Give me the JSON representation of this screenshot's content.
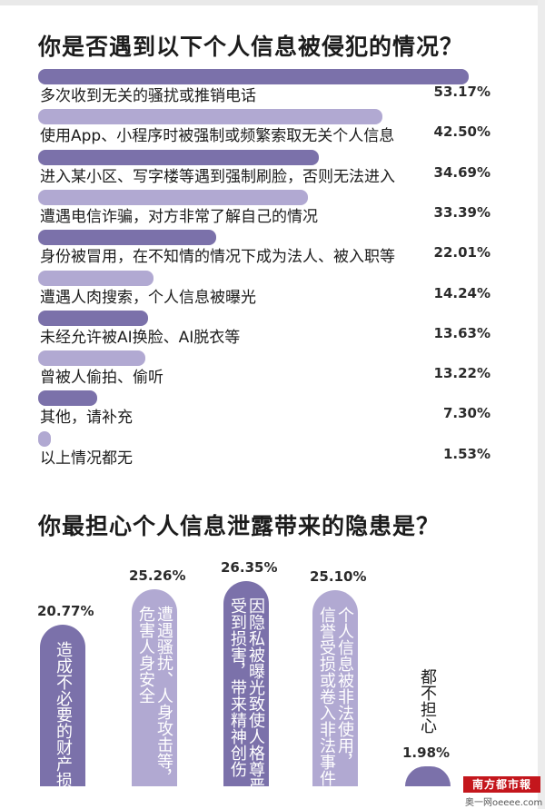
{
  "colors": {
    "bar": "#7b71aa",
    "bar_light": "#b1a9d2"
  },
  "chart_data": [
    {
      "type": "bar",
      "orientation": "horizontal",
      "title": "你是否遇到以下个人信息被侵犯的情况？",
      "categories": [
        "多次收到无关的骚扰或推销电话",
        "使用App、小程序时被强制或频繁索取无关个人信息",
        "进入某小区、写字楼等遇到强制刷脸，否则无法进入",
        "遭遇电信诈骗，对方非常了解自己的情况",
        "身份被冒用，在不知情的情况下成为法人、被入职等",
        "遭遇人肉搜索，个人信息被曝光",
        "未经允许被AI换脸、AI脱衣等",
        "曾被人偷拍、偷听",
        "其他，请补充",
        "以上情况都无"
      ],
      "values": [
        53.17,
        42.5,
        34.69,
        33.39,
        22.01,
        14.24,
        13.63,
        13.22,
        7.3,
        1.53
      ],
      "labels": [
        "53.17%",
        "42.50%",
        "34.69%",
        "33.39%",
        "22.01%",
        "14.24%",
        "13.63%",
        "13.22%",
        "7.30%",
        "1.53%"
      ],
      "xlim": [
        0,
        55
      ]
    },
    {
      "type": "bar",
      "orientation": "vertical",
      "title": "你最担心个人信息泄露带来的隐患是？",
      "categories": [
        "造成不必要的财产损失",
        "遭遇骚扰、人身攻击等，危害人身安全",
        "因隐私被曝光致使人格尊严受到损害，带来精神创伤",
        "个人信息被非法使用，信誉受损或卷入非法事件",
        "都不担心"
      ],
      "label_columns": [
        [
          "造成不必要的财产损失"
        ],
        [
          "遭遇骚扰、人身攻击等，",
          "危害人身安全"
        ],
        [
          "因隐私被曝光致使人格尊严",
          "受到损害，带来精神创伤"
        ],
        [
          "个人信息被非法使用，",
          "信誉受损或卷入非法事件"
        ],
        [
          "都不担心"
        ]
      ],
      "values": [
        20.77,
        25.26,
        26.35,
        25.1,
        1.98
      ],
      "labels": [
        "20.77%",
        "25.26%",
        "26.35%",
        "25.10%",
        "1.98%"
      ],
      "ylim": [
        0,
        27
      ]
    }
  ],
  "logo": {
    "text": "南方都市報",
    "sub": "奥一网oeeee.com"
  }
}
